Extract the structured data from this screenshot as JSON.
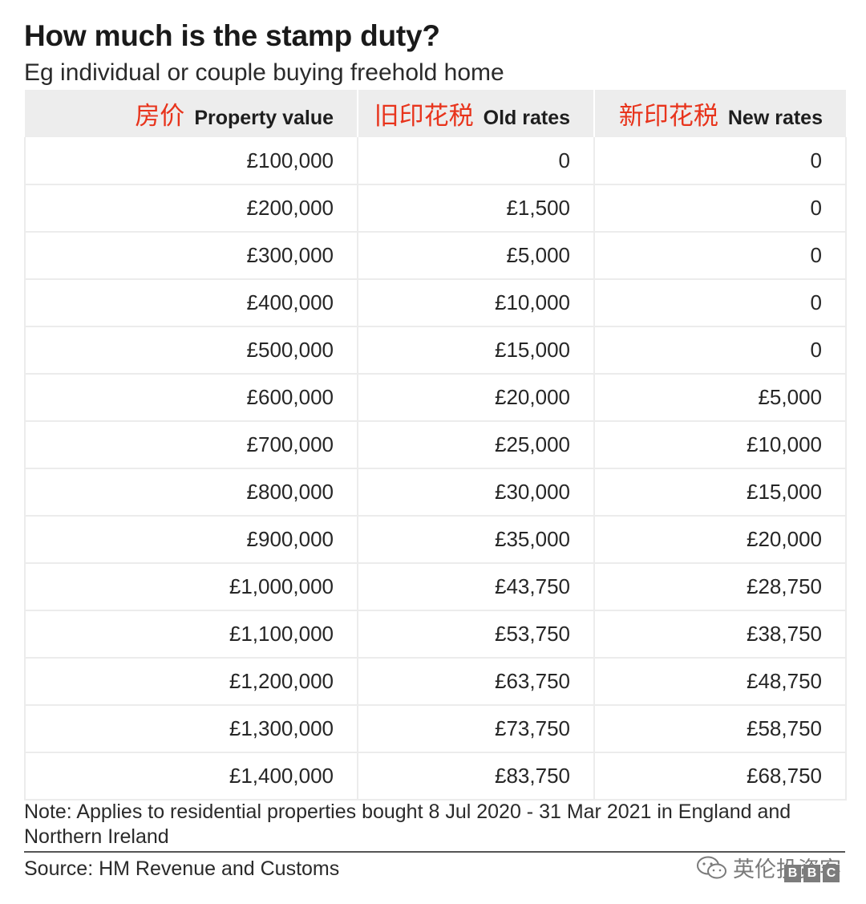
{
  "title": "How much is the stamp duty?",
  "subtitle": "Eg individual or couple buying freehold home",
  "chart_data": {
    "type": "table",
    "title": "How much is the stamp duty?",
    "subtitle": "Eg individual or couple buying freehold home",
    "columns": [
      {
        "cn": "房价",
        "en": "Property value"
      },
      {
        "cn": "旧印花税",
        "en": "Old rates"
      },
      {
        "cn": "新印花税",
        "en": "New rates"
      }
    ],
    "rows": [
      [
        "£100,000",
        "0",
        "0"
      ],
      [
        "£200,000",
        "£1,500",
        "0"
      ],
      [
        "£300,000",
        "£5,000",
        "0"
      ],
      [
        "£400,000",
        "£10,000",
        "0"
      ],
      [
        "£500,000",
        "£15,000",
        "0"
      ],
      [
        "£600,000",
        "£20,000",
        "£5,000"
      ],
      [
        "£700,000",
        "£25,000",
        "£10,000"
      ],
      [
        "£800,000",
        "£30,000",
        "£15,000"
      ],
      [
        "£900,000",
        "£35,000",
        "£20,000"
      ],
      [
        "£1,000,000",
        "£43,750",
        "£28,750"
      ],
      [
        "£1,100,000",
        "£53,750",
        "£38,750"
      ],
      [
        "£1,200,000",
        "£63,750",
        "£48,750"
      ],
      [
        "£1,300,000",
        "£73,750",
        "£58,750"
      ],
      [
        "£1,400,000",
        "£83,750",
        "£68,750"
      ]
    ],
    "annotation_color": "#e8341c"
  },
  "note": "Note: Applies to residential properties bought 8 Jul 2020 - 31 Mar 2021 in England and Northern Ireland",
  "source": "Source: HM Revenue and Customs",
  "watermark": {
    "text": "英伦投资客",
    "icon": "wechat-icon"
  },
  "logo": {
    "letters": [
      "B",
      "B",
      "C"
    ]
  }
}
